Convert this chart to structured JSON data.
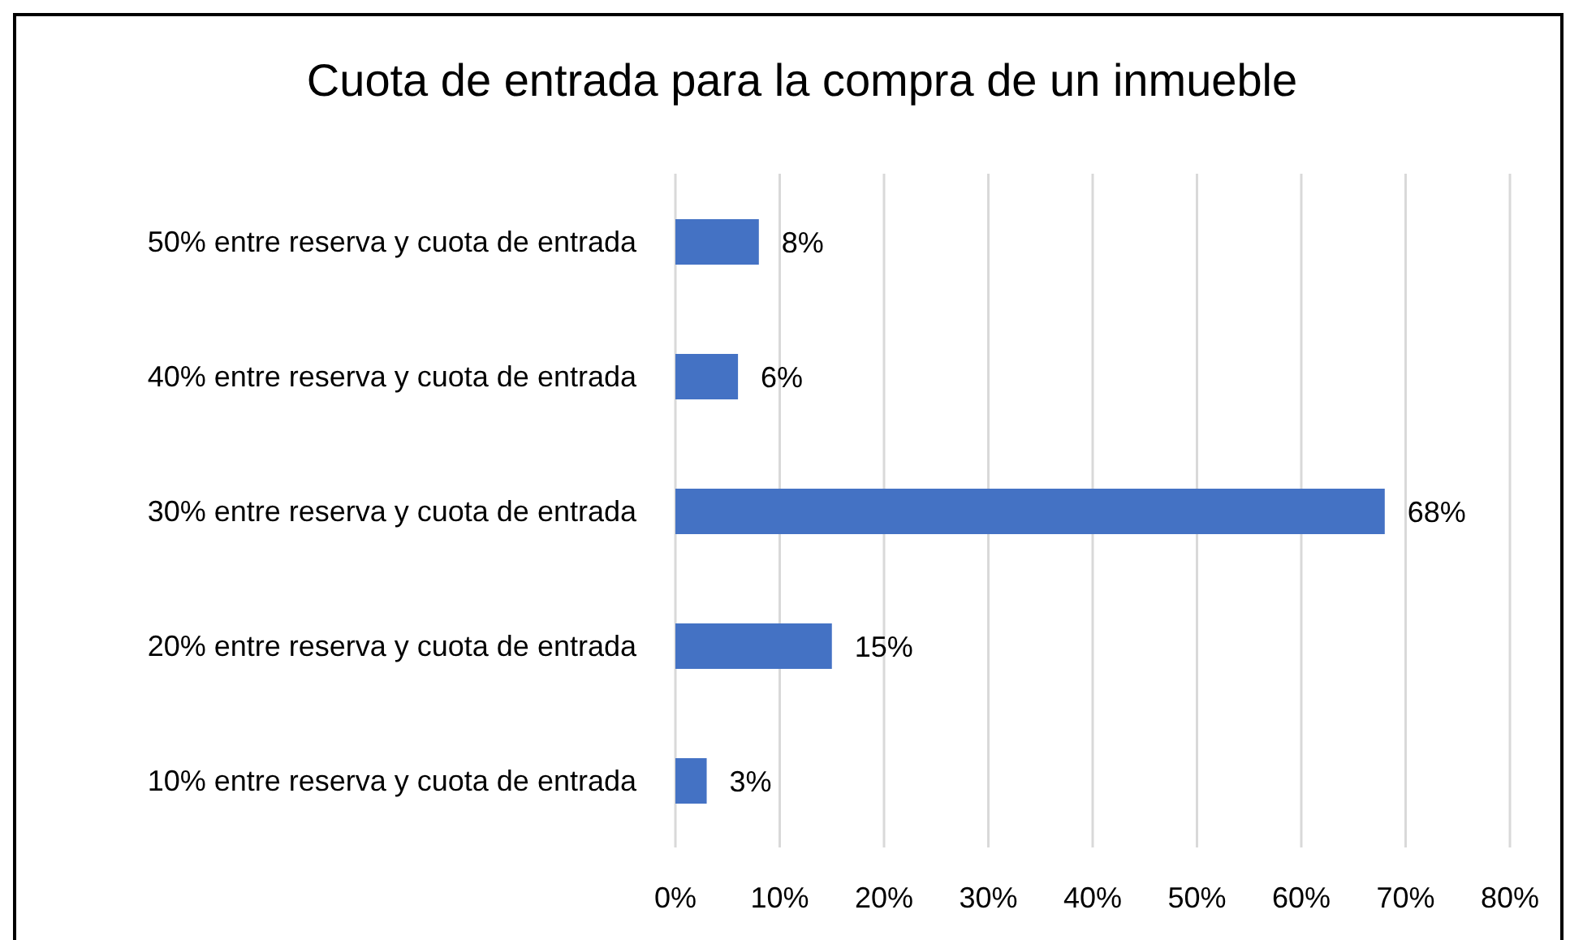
{
  "chart_data": {
    "type": "bar",
    "orientation": "horizontal",
    "title": "Cuota de entrada para la compra de un inmueble",
    "categories": [
      "50% entre reserva y cuota de entrada",
      "40% entre reserva y cuota de entrada",
      "30% entre reserva y cuota de entrada",
      "20% entre reserva y cuota de entrada",
      "10% entre reserva y cuota de entrada"
    ],
    "values": [
      8,
      6,
      68,
      15,
      3
    ],
    "color": "#4472c4",
    "value_labels": [
      "8%",
      "6%",
      "68%",
      "15%",
      "3%"
    ],
    "xlim": [
      0,
      80
    ],
    "xticks": [
      {
        "value": 0,
        "label": "0%"
      },
      {
        "value": 10,
        "label": "10%"
      },
      {
        "value": 20,
        "label": "20%"
      },
      {
        "value": 30,
        "label": "30%"
      },
      {
        "value": 40,
        "label": "40%"
      },
      {
        "value": 50,
        "label": "50%"
      },
      {
        "value": 60,
        "label": "60%"
      },
      {
        "value": 70,
        "label": "70%"
      },
      {
        "value": 80,
        "label": "80%"
      }
    ],
    "grid": "x"
  }
}
